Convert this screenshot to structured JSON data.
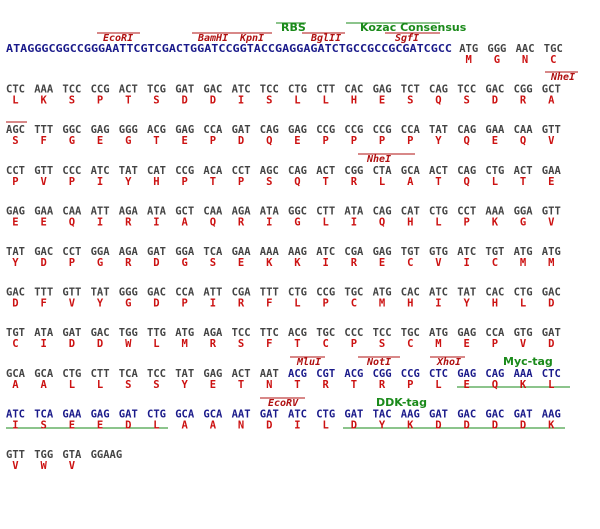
{
  "sequence_prefix": "ATAGGGCGGCCGGGAATTCGTCGACTGGATCCGGTACCGAGGAGATCTGCCGCCGCGATCGCC",
  "rows": [
    {
      "codons": [
        "ATG",
        "GGG",
        "AAC",
        "TGC"
      ],
      "aas": [
        "M",
        "G",
        "N",
        "C"
      ]
    },
    {
      "codons": [
        "CTC",
        "AAA",
        "TCC",
        "CCG",
        "ACT",
        "TCG",
        "GAT",
        "GAC",
        "ATC",
        "TCC",
        "CTG",
        "CTT",
        "CAC",
        "GAG",
        "TCT",
        "CAG",
        "TCC",
        "GAC",
        "CGG",
        "GCT"
      ],
      "aas": [
        "L",
        "K",
        "S",
        "P",
        "T",
        "S",
        "D",
        "D",
        "I",
        "S",
        "L",
        "L",
        "H",
        "E",
        "S",
        "Q",
        "S",
        "D",
        "R",
        "A"
      ]
    },
    {
      "codons": [
        "AGC",
        "TTT",
        "GGC",
        "GAG",
        "GGG",
        "ACG",
        "GAG",
        "CCA",
        "GAT",
        "CAG",
        "GAG",
        "CCG",
        "CCG",
        "CCG",
        "CCA",
        "TAT",
        "CAG",
        "GAA",
        "CAA",
        "GTT"
      ],
      "aas": [
        "S",
        "F",
        "G",
        "E",
        "G",
        "T",
        "E",
        "P",
        "D",
        "Q",
        "E",
        "P",
        "P",
        "P",
        "P",
        "Y",
        "Q",
        "E",
        "Q",
        "V"
      ]
    },
    {
      "codons": [
        "CCT",
        "GTT",
        "CCC",
        "ATC",
        "TAT",
        "CAT",
        "CCG",
        "ACA",
        "CCT",
        "AGC",
        "CAG",
        "ACT",
        "CGG",
        "CTA",
        "GCA",
        "ACT",
        "CAG",
        "CTG",
        "ACT",
        "GAA"
      ],
      "aas": [
        "P",
        "V",
        "P",
        "I",
        "Y",
        "H",
        "P",
        "T",
        "P",
        "S",
        "Q",
        "T",
        "R",
        "L",
        "A",
        "T",
        "Q",
        "L",
        "T",
        "E"
      ]
    },
    {
      "codons": [
        "GAG",
        "GAA",
        "CAA",
        "ATT",
        "AGA",
        "ATA",
        "GCT",
        "CAA",
        "AGA",
        "ATA",
        "GGC",
        "CTT",
        "ATA",
        "CAG",
        "CAT",
        "CTG",
        "CCT",
        "AAA",
        "GGA",
        "GTT"
      ],
      "aas": [
        "E",
        "E",
        "Q",
        "I",
        "R",
        "I",
        "A",
        "Q",
        "R",
        "I",
        "G",
        "L",
        "I",
        "Q",
        "H",
        "L",
        "P",
        "K",
        "G",
        "V"
      ]
    },
    {
      "codons": [
        "TAT",
        "GAC",
        "CCT",
        "GGA",
        "AGA",
        "GAT",
        "GGA",
        "TCA",
        "GAA",
        "AAA",
        "AAG",
        "ATC",
        "CGA",
        "GAG",
        "TGT",
        "GTG",
        "ATC",
        "TGT",
        "ATG",
        "ATG"
      ],
      "aas": [
        "Y",
        "D",
        "P",
        "G",
        "R",
        "D",
        "G",
        "S",
        "E",
        "K",
        "K",
        "I",
        "R",
        "E",
        "C",
        "V",
        "I",
        "C",
        "M",
        "M"
      ]
    },
    {
      "codons": [
        "GAC",
        "TTT",
        "GTT",
        "TAT",
        "GGG",
        "GAC",
        "CCA",
        "ATT",
        "CGA",
        "TTT",
        "CTG",
        "CCG",
        "TGC",
        "ATG",
        "CAC",
        "ATC",
        "TAT",
        "CAC",
        "CTG",
        "GAC"
      ],
      "aas": [
        "D",
        "F",
        "V",
        "Y",
        "G",
        "D",
        "P",
        "I",
        "R",
        "F",
        "L",
        "P",
        "C",
        "M",
        "H",
        "I",
        "Y",
        "H",
        "L",
        "D"
      ]
    },
    {
      "codons": [
        "TGT",
        "ATA",
        "GAT",
        "GAC",
        "TGG",
        "TTG",
        "ATG",
        "AGA",
        "TCC",
        "TTC",
        "ACG",
        "TGC",
        "CCC",
        "TCC",
        "TGC",
        "ATG",
        "GAG",
        "CCA",
        "GTG",
        "GAT"
      ],
      "aas": [
        "C",
        "I",
        "D",
        "D",
        "W",
        "L",
        "M",
        "R",
        "S",
        "F",
        "T",
        "C",
        "P",
        "S",
        "C",
        "M",
        "E",
        "P",
        "V",
        "D"
      ]
    },
    {
      "codons": [
        "GCA",
        "GCA",
        "CTG",
        "CTT",
        "TCA",
        "TCC",
        "TAT",
        "GAG",
        "ACT",
        "AAT",
        "ACG",
        "CGT",
        "ACG",
        "CGG",
        "CCG",
        "CTC",
        "GAG",
        "CAG",
        "AAA",
        "CTC"
      ],
      "aas": [
        "A",
        "A",
        "L",
        "L",
        "S",
        "S",
        "Y",
        "E",
        "T",
        "N",
        "T",
        "R",
        "T",
        "R",
        "P",
        "L",
        "E",
        "Q",
        "K",
        "L"
      ]
    },
    {
      "codons": [
        "ATC",
        "TCA",
        "GAA",
        "GAG",
        "GAT",
        "CTG",
        "GCA",
        "GCA",
        "AAT",
        "GAT",
        "ATC",
        "CTG",
        "GAT",
        "TAC",
        "AAG",
        "GAT",
        "GAC",
        "GAC",
        "GAT",
        "AAG"
      ],
      "aas": [
        "I",
        "S",
        "E",
        "E",
        "D",
        "L",
        "A",
        "A",
        "N",
        "D",
        "I",
        "L",
        "D",
        "Y",
        "K",
        "D",
        "D",
        "D",
        "D",
        "K"
      ]
    },
    {
      "codons": [
        "GTT",
        "TGG",
        "GTA",
        "GGAAG"
      ],
      "aas": [
        "V",
        "W",
        "V"
      ]
    }
  ],
  "site_labels": {
    "ecori": "EcoRI",
    "bamhi": "BamHI",
    "kpni": "KpnI",
    "rbs": "RBS",
    "kozac": "Kozac Consensus",
    "bglii": "BglII",
    "sgfi": "SgfI",
    "nhei_1": "NheI",
    "nhei_2": "NheI",
    "mlui": "MluI",
    "noti": "NotI",
    "xhoi": "XhoI",
    "myc": "Myc-tag",
    "ecorv": "EcoRV",
    "ddk": "DDK-tag"
  }
}
